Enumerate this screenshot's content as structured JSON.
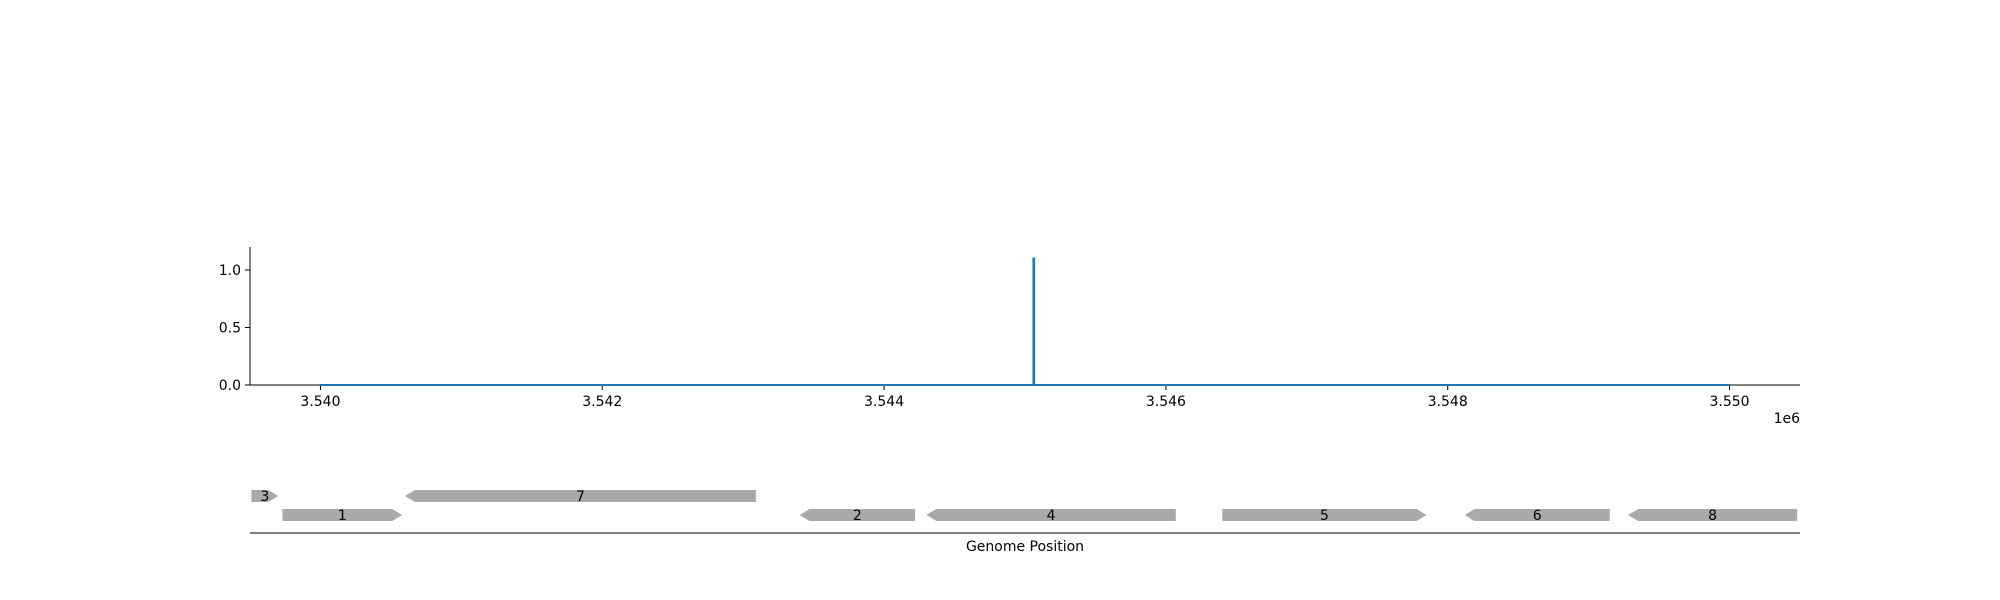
{
  "chart_data": [
    {
      "type": "line",
      "title": "",
      "xlabel": "",
      "ylabel": "",
      "x_offset_label": "1e6",
      "xlim": [
        3539500,
        3550500
      ],
      "ylim": [
        0,
        1.2
      ],
      "x_ticks": [
        {
          "value": 3540000,
          "label": "3.540"
        },
        {
          "value": 3542000,
          "label": "3.542"
        },
        {
          "value": 3544000,
          "label": "3.544"
        },
        {
          "value": 3546000,
          "label": "3.546"
        },
        {
          "value": 3548000,
          "label": "3.548"
        },
        {
          "value": 3550000,
          "label": "3.550"
        }
      ],
      "y_ticks": [
        {
          "value": 0.0,
          "label": "0.0"
        },
        {
          "value": 0.5,
          "label": "0.5"
        },
        {
          "value": 1.0,
          "label": "1.0"
        }
      ],
      "series": [
        {
          "color": "#1f77b4",
          "points": [
            [
              3540000,
              0.0
            ],
            [
              3545060,
              0.0
            ],
            [
              3545060,
              1.1
            ],
            [
              3545065,
              1.1
            ],
            [
              3545065,
              0.0
            ],
            [
              3550000,
              0.0
            ]
          ]
        }
      ],
      "grid": false
    },
    {
      "type": "gene-track",
      "xlabel": "Genome Position",
      "xlim": [
        3539500,
        3550500
      ],
      "feature_color": "#a9a9a9",
      "features": [
        {
          "label": "3",
          "start": 3539510,
          "end": 3539700,
          "strand": "+",
          "row": 2
        },
        {
          "label": "1",
          "start": 3539730,
          "end": 3540580,
          "strand": "+",
          "row": 1
        },
        {
          "label": "7",
          "start": 3540600,
          "end": 3543090,
          "strand": "-",
          "row": 2
        },
        {
          "label": "2",
          "start": 3543400,
          "end": 3544220,
          "strand": "-",
          "row": 1
        },
        {
          "label": "4",
          "start": 3544300,
          "end": 3546070,
          "strand": "-",
          "row": 1
        },
        {
          "label": "5",
          "start": 3546400,
          "end": 3547850,
          "strand": "+",
          "row": 1
        },
        {
          "label": "6",
          "start": 3548120,
          "end": 3549150,
          "strand": "-",
          "row": 1
        },
        {
          "label": "8",
          "start": 3549280,
          "end": 3550480,
          "strand": "-",
          "row": 1
        }
      ]
    }
  ]
}
